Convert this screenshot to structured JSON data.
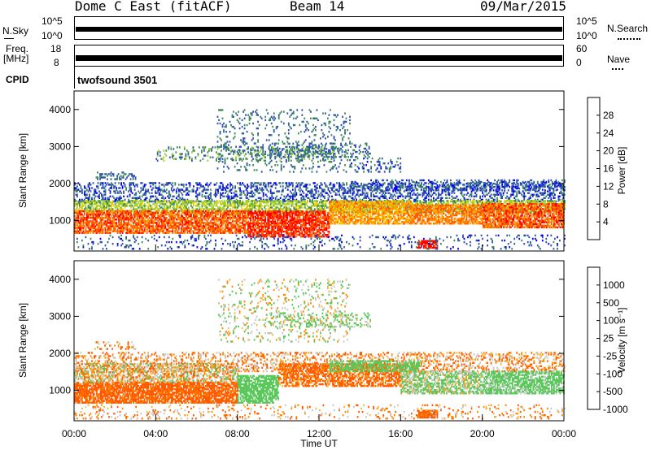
{
  "header": {
    "station": "Dome C East (fitACF)",
    "beam": "Beam 14",
    "date": "09/Mar/2015"
  },
  "strip_nsky": {
    "label": "N.Sky",
    "ticks": [
      "10^5",
      "10^0"
    ],
    "right_label": "N.Search",
    "right_ticks": [
      "10^5",
      "10^0"
    ]
  },
  "strip_freq": {
    "label_line1": "Freq.",
    "label_line2": "[MHz]",
    "ticks": [
      "18",
      "8"
    ],
    "right_label": "Nave",
    "right_ticks": [
      "60",
      "0"
    ]
  },
  "cpid": {
    "label": "CPID",
    "value": "twofsound 3501"
  },
  "x_axis": {
    "label": "Time UT",
    "ticks": [
      "00:00",
      "04:00",
      "08:00",
      "12:00",
      "16:00",
      "20:00",
      "00:00"
    ],
    "range_hours": [
      0,
      24
    ]
  },
  "power_panel": {
    "y_label": "Slant Range [km]",
    "y_ticks": [
      "1000",
      "2000",
      "3000",
      "4000"
    ],
    "colorbar_label": "Power [dB]",
    "colorbar_ticks": [
      "4",
      "8",
      "12",
      "16",
      "20",
      "24",
      "28"
    ]
  },
  "velocity_panel": {
    "y_label": "Slant Range [km]",
    "y_ticks": [
      "1000",
      "2000",
      "3000",
      "4000"
    ],
    "colorbar_label": "Velocity [m s⁻¹]",
    "colorbar_ticks": [
      "1000",
      "500",
      "100",
      "25",
      "-25",
      "-100",
      "-500",
      "-1000"
    ]
  },
  "chart_data": [
    {
      "type": "heatmap",
      "name": "power",
      "x_unit": "hours UT",
      "y_unit": "km",
      "xlim": [
        0,
        24
      ],
      "ylim": [
        180,
        4500
      ],
      "color_scale": {
        "min": 0,
        "max": 32,
        "colors": [
          "#0000ff",
          "#2f50b0",
          "#3c8a5c",
          "#9ccf2a",
          "#f0d000",
          "#ff9a00",
          "#ff5a00",
          "#ff0000"
        ]
      },
      "regions": [
        {
          "t": [
            0,
            24
          ],
          "r": [
            1500,
            2000
          ],
          "v": 6,
          "p": 0.35
        },
        {
          "t": [
            0,
            24
          ],
          "r": [
            1200,
            1550
          ],
          "v": 14,
          "p": 0.6
        },
        {
          "t": [
            0,
            8.5
          ],
          "r": [
            650,
            1250
          ],
          "v": 26,
          "p": 0.75
        },
        {
          "t": [
            8.5,
            12.5
          ],
          "r": [
            550,
            1250
          ],
          "v": 28,
          "p": 0.8
        },
        {
          "t": [
            12.5,
            16.5
          ],
          "r": [
            900,
            1500
          ],
          "v": 22,
          "p": 0.7
        },
        {
          "t": [
            16.5,
            20
          ],
          "r": [
            900,
            1400
          ],
          "v": 24,
          "p": 0.7
        },
        {
          "t": [
            20,
            24
          ],
          "r": [
            800,
            1450
          ],
          "v": 26,
          "p": 0.75
        },
        {
          "t": [
            7,
            13.5
          ],
          "r": [
            2300,
            4000
          ],
          "v": 8,
          "p": 0.12
        },
        {
          "t": [
            4,
            13
          ],
          "r": [
            2600,
            3000
          ],
          "v": 10,
          "p": 0.2
        },
        {
          "t": [
            9.5,
            14.5
          ],
          "r": [
            2700,
            3100
          ],
          "v": 8,
          "p": 0.25
        },
        {
          "t": [
            13.5,
            16
          ],
          "r": [
            2300,
            2700
          ],
          "v": 7,
          "p": 0.2
        },
        {
          "t": [
            1,
            3
          ],
          "r": [
            2100,
            2300
          ],
          "v": 8,
          "p": 0.3
        },
        {
          "t": [
            13.5,
            24
          ],
          "r": [
            1800,
            2100
          ],
          "v": 6,
          "p": 0.3
        },
        {
          "t": [
            16.8,
            17.8
          ],
          "r": [
            250,
            450
          ],
          "v": 30,
          "p": 0.8
        },
        {
          "t": [
            0,
            24
          ],
          "r": [
            220,
            600
          ],
          "v": 6,
          "p": 0.12
        }
      ]
    },
    {
      "type": "heatmap",
      "name": "velocity",
      "x_unit": "hours UT",
      "y_unit": "km",
      "xlim": [
        0,
        24
      ],
      "ylim": [
        180,
        4500
      ],
      "color_scale": {
        "levels": [
          -1000,
          -500,
          -100,
          -25,
          25,
          100,
          500,
          1000
        ],
        "colors": [
          "#ff0000",
          "#ff5a00",
          "#ff8c00",
          "#f0b64a",
          "#c8c8c8",
          "#5ac85a",
          "#3c8a5c",
          "#2050c0"
        ]
      },
      "regions": [
        {
          "t": [
            0,
            24
          ],
          "r": [
            1500,
            2000
          ],
          "v": -60,
          "p": 0.3
        },
        {
          "t": [
            0,
            8
          ],
          "r": [
            650,
            1200
          ],
          "v": -200,
          "p": 0.8
        },
        {
          "t": [
            0,
            8
          ],
          "r": [
            1200,
            1700
          ],
          "v": 0,
          "p": 0.55
        },
        {
          "t": [
            8,
            10
          ],
          "r": [
            650,
            1400
          ],
          "v": 300,
          "p": 0.75
        },
        {
          "t": [
            10,
            16
          ],
          "r": [
            1100,
            1700
          ],
          "v": -150,
          "p": 0.65
        },
        {
          "t": [
            12.5,
            17
          ],
          "r": [
            1500,
            1800
          ],
          "v": 300,
          "p": 0.55
        },
        {
          "t": [
            16,
            20
          ],
          "r": [
            900,
            1500
          ],
          "v": 120,
          "p": 0.65
        },
        {
          "t": [
            20,
            24
          ],
          "r": [
            900,
            1500
          ],
          "v": 200,
          "p": 0.7
        },
        {
          "t": [
            7,
            13.5
          ],
          "r": [
            2300,
            4000
          ],
          "v": 60,
          "p": 0.12
        },
        {
          "t": [
            9.5,
            14.5
          ],
          "r": [
            2700,
            3100
          ],
          "v": 150,
          "p": 0.25
        },
        {
          "t": [
            1,
            3
          ],
          "r": [
            2100,
            2300
          ],
          "v": -60,
          "p": 0.3
        },
        {
          "t": [
            16.8,
            17.8
          ],
          "r": [
            250,
            450
          ],
          "v": -200,
          "p": 0.8
        },
        {
          "t": [
            0,
            24
          ],
          "r": [
            220,
            600
          ],
          "v": -60,
          "p": 0.12
        }
      ]
    }
  ]
}
